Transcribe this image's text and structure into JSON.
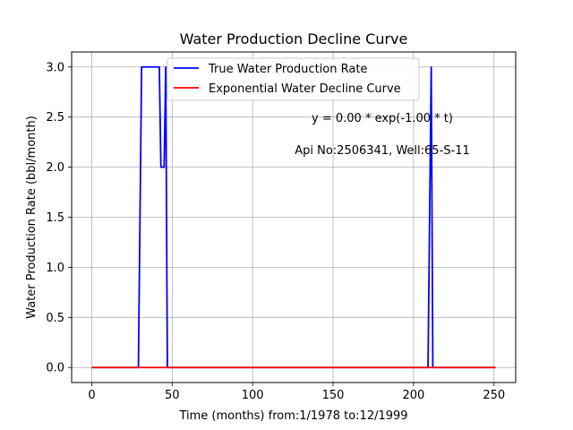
{
  "chart_data": {
    "type": "line",
    "title": "Water Production Decline Curve",
    "xlabel": "Time (months) from:1/1978 to:12/1999",
    "ylabel": "Water Production Rate (bbl/month)",
    "xlim": [
      -12.5,
      263.5
    ],
    "ylim": [
      -0.15,
      3.15
    ],
    "xticks": [
      0,
      50,
      100,
      150,
      200,
      250
    ],
    "yticks": [
      0.0,
      0.5,
      1.0,
      1.5,
      2.0,
      2.5,
      3.0
    ],
    "xtick_labels": [
      "0",
      "50",
      "100",
      "150",
      "200",
      "250"
    ],
    "ytick_labels": [
      "0.0",
      "0.5",
      "1.0",
      "1.5",
      "2.0",
      "2.5",
      "3.0"
    ],
    "grid": true,
    "legend_position": "top-center",
    "annotations": [
      {
        "text": "y = 0.00 * exp(-1.00 * t)"
      },
      {
        "text": "Api No:2506341, Well:65-S-11"
      }
    ],
    "series": [
      {
        "name": "True Water Production Rate",
        "color": "#0000ff",
        "x": [
          0,
          29,
          31,
          42,
          43,
          45,
          46,
          47,
          209,
          211,
          212,
          251
        ],
        "y": [
          0,
          0,
          3,
          3,
          2,
          2,
          3,
          0,
          0,
          3,
          0,
          0
        ]
      },
      {
        "name": "Exponential Water Decline Curve",
        "color": "#ff0000",
        "x": [
          0,
          251
        ],
        "y": [
          0,
          0
        ]
      }
    ]
  }
}
